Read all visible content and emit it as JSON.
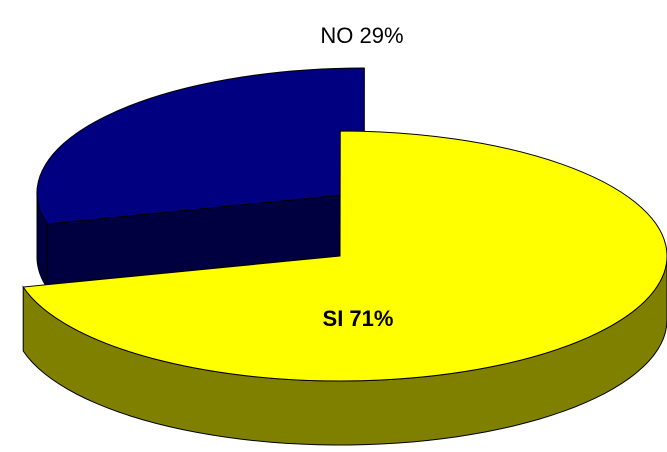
{
  "chart_data": {
    "type": "pie",
    "style": "3d-exploded",
    "slices": [
      {
        "label": "NO",
        "value": 29,
        "display": "NO  29%",
        "top_color": "#000080",
        "side_color": "#000040"
      },
      {
        "label": "SI",
        "value": 71,
        "display": "SI   71%",
        "top_color": "#ffff00",
        "side_color": "#808000"
      }
    ],
    "title": "",
    "legend": "none"
  }
}
